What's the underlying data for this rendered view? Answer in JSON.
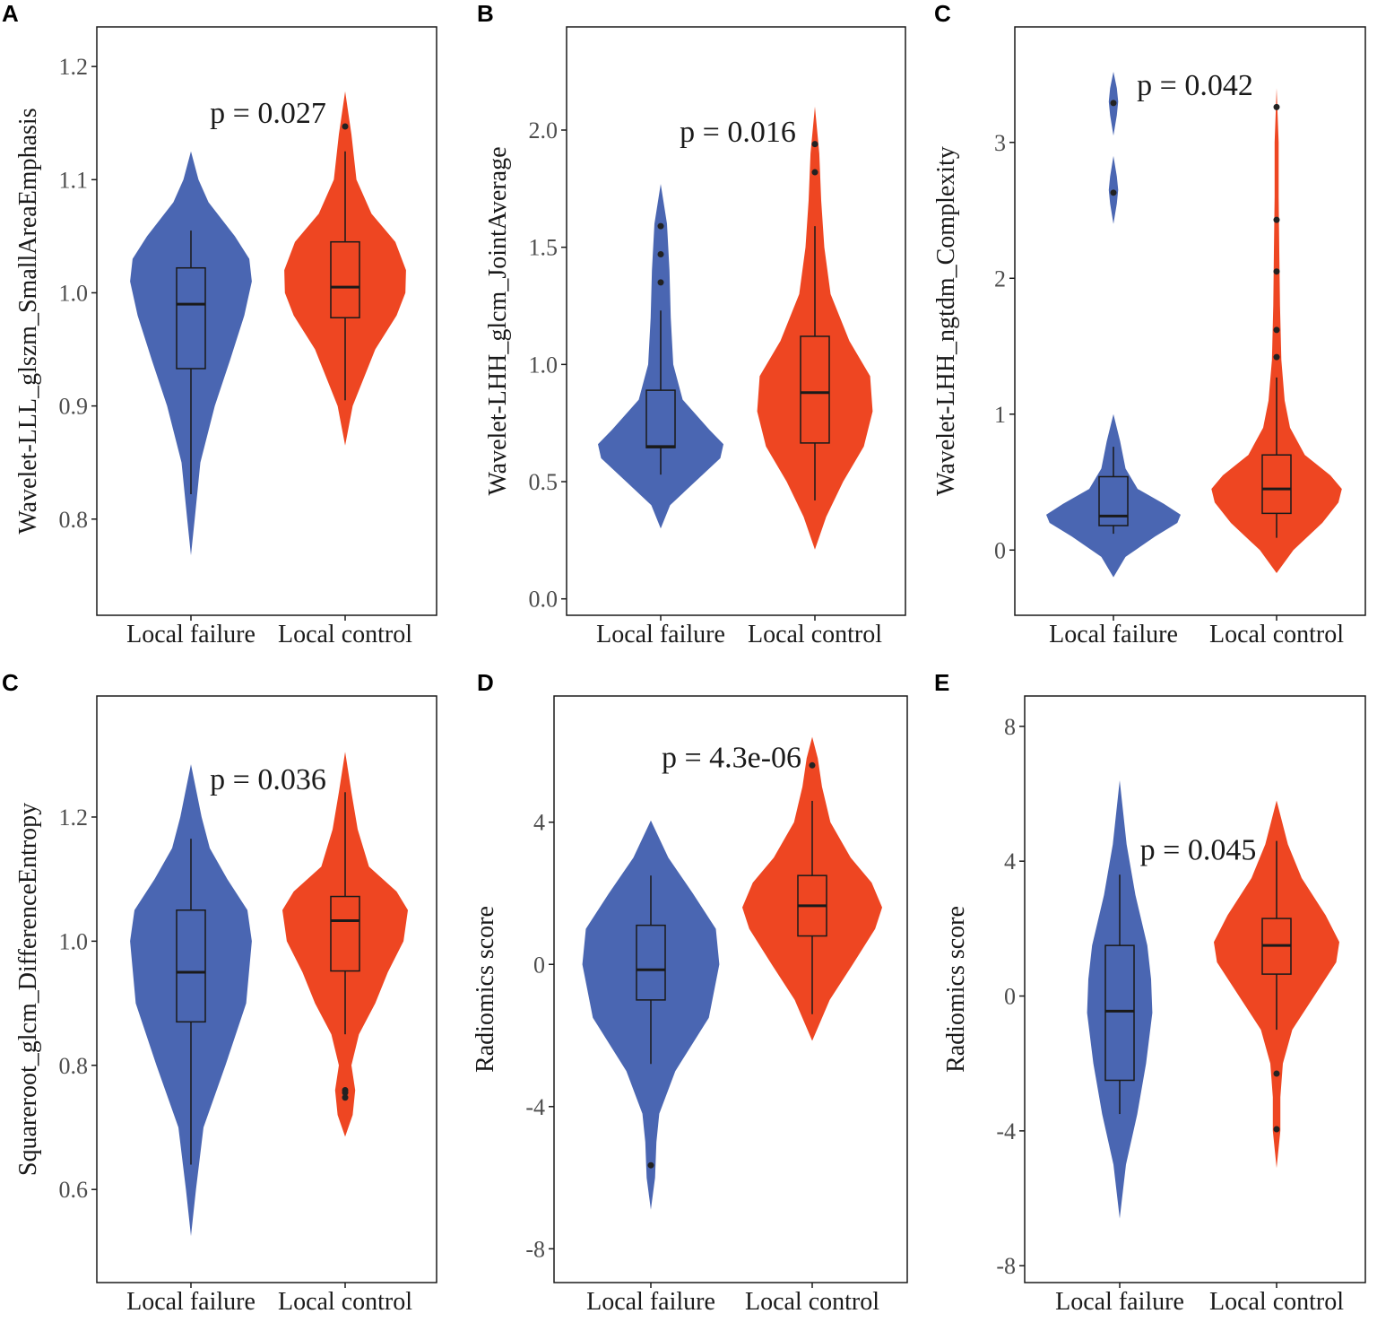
{
  "colors": {
    "failure": "#4A66B2",
    "control": "#EE4622",
    "box": "#1a1a1a",
    "frame": "#1a1a1a"
  },
  "chart_data": [
    {
      "panel": "A",
      "type": "violin",
      "ylabel": "Wavelet-LLL_glszm_SmallAreaEmphasis",
      "categories": [
        "Local failure",
        "Local control"
      ],
      "ylim": [
        0.715,
        1.235
      ],
      "yticks": [
        0.8,
        0.9,
        1.0,
        1.1,
        1.2
      ],
      "ytick_labels": [
        "0.8",
        "0.9",
        "1.0",
        "1.1",
        "1.2"
      ],
      "annotation": "p = 0.027",
      "annotation_anchor": [
        1.5,
        1.15
      ],
      "groups": [
        {
          "name": "Local failure",
          "color": "#4A66B2",
          "box": {
            "whisker_low": 0.822,
            "q1": 0.933,
            "median": 0.99,
            "q3": 1.022,
            "whisker_high": 1.055
          },
          "outliers": [],
          "density": [
            [
              0.768,
              0.0
            ],
            [
              0.8,
              0.06
            ],
            [
              0.85,
              0.15
            ],
            [
              0.9,
              0.38
            ],
            [
              0.94,
              0.62
            ],
            [
              0.98,
              0.85
            ],
            [
              1.01,
              0.97
            ],
            [
              1.03,
              0.93
            ],
            [
              1.05,
              0.7
            ],
            [
              1.08,
              0.28
            ],
            [
              1.1,
              0.12
            ],
            [
              1.125,
              0.0
            ]
          ]
        },
        {
          "name": "Local control",
          "color": "#EE4622",
          "box": {
            "whisker_low": 0.905,
            "q1": 0.978,
            "median": 1.005,
            "q3": 1.045,
            "whisker_high": 1.125
          },
          "outliers": [
            1.147
          ],
          "density": [
            [
              0.865,
              0.0
            ],
            [
              0.9,
              0.12
            ],
            [
              0.95,
              0.48
            ],
            [
              0.98,
              0.82
            ],
            [
              1.0,
              0.96
            ],
            [
              1.02,
              0.97
            ],
            [
              1.045,
              0.8
            ],
            [
              1.07,
              0.42
            ],
            [
              1.1,
              0.18
            ],
            [
              1.14,
              0.1
            ],
            [
              1.178,
              0.0
            ]
          ]
        }
      ]
    },
    {
      "panel": "B",
      "type": "violin",
      "ylabel": "Wavelet-LHH_glcm_JointAverage",
      "categories": [
        "Local failure",
        "Local control"
      ],
      "ylim": [
        -0.07,
        2.44
      ],
      "yticks": [
        0.0,
        0.5,
        1.0,
        1.5,
        2.0
      ],
      "ytick_labels": [
        "0.0",
        "0.5",
        "1.0",
        "1.5",
        "2.0"
      ],
      "annotation": "p = 0.016",
      "annotation_anchor": [
        1.5,
        1.95
      ],
      "groups": [
        {
          "name": "Local failure",
          "color": "#4A66B2",
          "box": {
            "whisker_low": 0.53,
            "q1": 0.645,
            "median": 0.65,
            "q3": 0.89,
            "whisker_high": 1.23
          },
          "outliers": [
            1.35,
            1.47,
            1.59
          ],
          "density": [
            [
              0.3,
              0.0
            ],
            [
              0.4,
              0.15
            ],
            [
              0.5,
              0.55
            ],
            [
              0.6,
              0.95
            ],
            [
              0.66,
              1.0
            ],
            [
              0.72,
              0.78
            ],
            [
              0.85,
              0.35
            ],
            [
              1.0,
              0.2
            ],
            [
              1.2,
              0.16
            ],
            [
              1.4,
              0.14
            ],
            [
              1.6,
              0.1
            ],
            [
              1.77,
              0.0
            ]
          ]
        },
        {
          "name": "Local control",
          "color": "#EE4622",
          "box": {
            "whisker_low": 0.42,
            "q1": 0.665,
            "median": 0.88,
            "q3": 1.12,
            "whisker_high": 1.59
          },
          "outliers": [
            1.82,
            1.94
          ],
          "density": [
            [
              0.21,
              0.0
            ],
            [
              0.35,
              0.18
            ],
            [
              0.5,
              0.45
            ],
            [
              0.65,
              0.78
            ],
            [
              0.8,
              0.92
            ],
            [
              0.95,
              0.88
            ],
            [
              1.1,
              0.55
            ],
            [
              1.3,
              0.25
            ],
            [
              1.5,
              0.15
            ],
            [
              1.7,
              0.1
            ],
            [
              1.9,
              0.07
            ],
            [
              2.1,
              0.0
            ]
          ]
        }
      ]
    },
    {
      "panel": "C",
      "type": "violin",
      "ylabel": "Wavelet-LHH_ngtdm_Complexity",
      "categories": [
        "Local failure",
        "Local control"
      ],
      "ylim": [
        -0.48,
        3.85
      ],
      "yticks": [
        0,
        1,
        2,
        3
      ],
      "ytick_labels": [
        "0",
        "1",
        "2",
        "3"
      ],
      "annotation": "p = 0.042",
      "annotation_anchor": [
        1.5,
        3.35
      ],
      "groups": [
        {
          "name": "Local failure",
          "color": "#4A66B2",
          "box": {
            "whisker_low": 0.12,
            "q1": 0.18,
            "median": 0.25,
            "q3": 0.54,
            "whisker_high": 0.76
          },
          "outliers": [
            2.63,
            3.29
          ],
          "density": [
            [
              -0.2,
              0.0
            ],
            [
              -0.05,
              0.18
            ],
            [
              0.1,
              0.62
            ],
            [
              0.2,
              0.95
            ],
            [
              0.26,
              1.0
            ],
            [
              0.34,
              0.75
            ],
            [
              0.45,
              0.36
            ],
            [
              0.6,
              0.18
            ],
            [
              0.8,
              0.1
            ],
            [
              1.0,
              0.0
            ],
            [
              2.4,
              0.0
            ],
            [
              2.55,
              0.05
            ],
            [
              2.65,
              0.07
            ],
            [
              2.75,
              0.05
            ],
            [
              2.9,
              0.0
            ],
            [
              3.05,
              0.0
            ],
            [
              3.2,
              0.05
            ],
            [
              3.3,
              0.07
            ],
            [
              3.4,
              0.05
            ],
            [
              3.52,
              0.0
            ]
          ]
        },
        {
          "name": "Local control",
          "color": "#EE4622",
          "box": {
            "whisker_low": 0.09,
            "q1": 0.27,
            "median": 0.45,
            "q3": 0.7,
            "whisker_high": 1.27
          },
          "outliers": [
            1.42,
            1.62,
            2.05,
            2.43,
            3.26
          ],
          "density": [
            [
              -0.17,
              0.0
            ],
            [
              0.0,
              0.25
            ],
            [
              0.2,
              0.68
            ],
            [
              0.35,
              0.92
            ],
            [
              0.45,
              0.97
            ],
            [
              0.55,
              0.8
            ],
            [
              0.7,
              0.42
            ],
            [
              0.9,
              0.2
            ],
            [
              1.1,
              0.12
            ],
            [
              1.4,
              0.07
            ],
            [
              1.8,
              0.05
            ],
            [
              2.2,
              0.04
            ],
            [
              2.6,
              0.03
            ],
            [
              3.0,
              0.03
            ],
            [
              3.4,
              0.0
            ]
          ]
        }
      ]
    },
    {
      "panel": "C",
      "type": "violin",
      "ylabel": "Squareroot_glcm_DifferenceEntropy",
      "categories": [
        "Local failure",
        "Local control"
      ],
      "ylim": [
        0.45,
        1.395
      ],
      "yticks": [
        0.6,
        0.8,
        1.0,
        1.2
      ],
      "ytick_labels": [
        "0.6",
        "0.8",
        "1.0",
        "1.2"
      ],
      "annotation": "p = 0.036",
      "annotation_anchor": [
        1.5,
        1.245
      ],
      "groups": [
        {
          "name": "Local failure",
          "color": "#4A66B2",
          "box": {
            "whisker_low": 0.64,
            "q1": 0.87,
            "median": 0.95,
            "q3": 1.05,
            "whisker_high": 1.165
          },
          "outliers": [],
          "density": [
            [
              0.525,
              0.0
            ],
            [
              0.6,
              0.08
            ],
            [
              0.7,
              0.2
            ],
            [
              0.8,
              0.55
            ],
            [
              0.9,
              0.88
            ],
            [
              1.0,
              0.97
            ],
            [
              1.05,
              0.9
            ],
            [
              1.1,
              0.58
            ],
            [
              1.15,
              0.3
            ],
            [
              1.2,
              0.17
            ],
            [
              1.285,
              0.0
            ]
          ]
        },
        {
          "name": "Local control",
          "color": "#EE4622",
          "box": {
            "whisker_low": 0.85,
            "q1": 0.952,
            "median": 1.033,
            "q3": 1.072,
            "whisker_high": 1.24
          },
          "outliers": [
            0.76,
            0.756,
            0.748
          ],
          "density": [
            [
              0.685,
              0.0
            ],
            [
              0.72,
              0.12
            ],
            [
              0.76,
              0.16
            ],
            [
              0.8,
              0.1
            ],
            [
              0.85,
              0.22
            ],
            [
              0.9,
              0.48
            ],
            [
              0.95,
              0.68
            ],
            [
              1.0,
              0.93
            ],
            [
              1.05,
              1.0
            ],
            [
              1.08,
              0.82
            ],
            [
              1.12,
              0.38
            ],
            [
              1.18,
              0.2
            ],
            [
              1.24,
              0.1
            ],
            [
              1.305,
              0.0
            ]
          ]
        }
      ]
    },
    {
      "panel": "D",
      "type": "violin",
      "ylabel": "Radiomics score",
      "categories": [
        "Local failure",
        "Local control"
      ],
      "ylim": [
        -8.95,
        7.55
      ],
      "yticks": [
        -8,
        -4,
        0,
        4
      ],
      "ytick_labels": [
        "-8",
        "-4",
        "0",
        "4"
      ],
      "annotation": "p = 4.3e-06",
      "annotation_anchor": [
        1.5,
        5.55
      ],
      "groups": [
        {
          "name": "Local failure",
          "color": "#4A66B2",
          "box": {
            "whisker_low": -2.8,
            "q1": -1.0,
            "median": -0.15,
            "q3": 1.1,
            "whisker_high": 2.5
          },
          "outliers": [
            -5.65
          ],
          "density": [
            [
              -6.9,
              0.0
            ],
            [
              -6.0,
              0.06
            ],
            [
              -5.0,
              0.08
            ],
            [
              -4.2,
              0.12
            ],
            [
              -3.0,
              0.35
            ],
            [
              -1.5,
              0.83
            ],
            [
              0.0,
              0.98
            ],
            [
              1.0,
              0.93
            ],
            [
              2.0,
              0.6
            ],
            [
              3.0,
              0.25
            ],
            [
              4.05,
              0.0
            ]
          ]
        },
        {
          "name": "Local control",
          "color": "#EE4622",
          "box": {
            "whisker_low": -1.4,
            "q1": 0.8,
            "median": 1.65,
            "q3": 2.5,
            "whisker_high": 4.6
          },
          "outliers": [
            5.6
          ],
          "density": [
            [
              -2.15,
              0.0
            ],
            [
              -1.0,
              0.25
            ],
            [
              0.0,
              0.58
            ],
            [
              1.0,
              0.9
            ],
            [
              1.6,
              1.0
            ],
            [
              2.3,
              0.85
            ],
            [
              3.0,
              0.55
            ],
            [
              4.0,
              0.26
            ],
            [
              5.0,
              0.14
            ],
            [
              5.8,
              0.08
            ],
            [
              6.4,
              0.0
            ]
          ]
        }
      ]
    },
    {
      "panel": "E",
      "type": "violin",
      "ylabel": "Radiomics score",
      "categories": [
        "Local failure",
        "Local control"
      ],
      "ylim": [
        -8.5,
        8.9
      ],
      "yticks": [
        -8,
        -4,
        0,
        4,
        8
      ],
      "ytick_labels": [
        "-8",
        "-4",
        "0",
        "4",
        "8"
      ],
      "annotation": "p = 0.045",
      "annotation_anchor": [
        1.5,
        4.05
      ],
      "groups": [
        {
          "name": "Local failure",
          "color": "#4A66B2",
          "box": {
            "whisker_low": -3.5,
            "q1": -2.5,
            "median": -0.45,
            "q3": 1.5,
            "whisker_high": 3.6
          },
          "outliers": [],
          "density": [
            [
              -6.6,
              0.0
            ],
            [
              -5.0,
              0.1
            ],
            [
              -3.5,
              0.28
            ],
            [
              -2.0,
              0.42
            ],
            [
              -0.5,
              0.52
            ],
            [
              0.5,
              0.5
            ],
            [
              1.5,
              0.44
            ],
            [
              3.0,
              0.25
            ],
            [
              4.5,
              0.11
            ],
            [
              6.4,
              0.0
            ]
          ]
        },
        {
          "name": "Local control",
          "color": "#EE4622",
          "box": {
            "whisker_low": -1.0,
            "q1": 0.65,
            "median": 1.5,
            "q3": 2.3,
            "whisker_high": 4.6
          },
          "outliers": [
            -2.3,
            -3.95
          ],
          "density": [
            [
              -5.1,
              0.0
            ],
            [
              -4.0,
              0.06
            ],
            [
              -3.0,
              0.06
            ],
            [
              -2.0,
              0.1
            ],
            [
              -1.0,
              0.25
            ],
            [
              0.0,
              0.6
            ],
            [
              1.0,
              0.95
            ],
            [
              1.6,
              1.0
            ],
            [
              2.4,
              0.78
            ],
            [
              3.5,
              0.4
            ],
            [
              4.5,
              0.18
            ],
            [
              5.8,
              0.0
            ]
          ]
        }
      ]
    }
  ]
}
